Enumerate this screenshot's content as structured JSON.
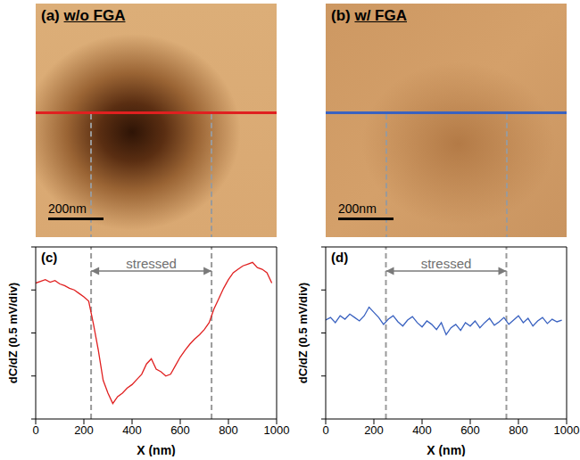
{
  "images": [
    {
      "label": "(a)",
      "title": "w/o FGA",
      "scale_bar": "200nm",
      "line_color": "#e02020"
    },
    {
      "label": "(b)",
      "title": "w/ FGA",
      "scale_bar": "200nm",
      "line_color": "#3a62c0"
    }
  ],
  "chart_data": [
    {
      "type": "line",
      "label": "(c)",
      "x_label": "X (nm)",
      "y_label": "dC/dZ (0.5 mV/div)",
      "annotation": "stressed",
      "stressed_range": [
        230,
        730
      ],
      "xlim": [
        0,
        1000
      ],
      "xticks": [
        0,
        200,
        400,
        600,
        800,
        1000
      ],
      "ylim": [
        0,
        2
      ],
      "yticks": [
        0,
        0.5,
        1,
        1.5,
        2
      ],
      "tick_labels": "x",
      "x": [
        0,
        20,
        40,
        60,
        80,
        100,
        120,
        140,
        160,
        180,
        200,
        220,
        240,
        260,
        280,
        300,
        320,
        340,
        360,
        380,
        400,
        420,
        440,
        460,
        480,
        500,
        520,
        540,
        560,
        580,
        600,
        620,
        640,
        660,
        680,
        700,
        720,
        740,
        760,
        780,
        800,
        820,
        840,
        860,
        880,
        900,
        920,
        940,
        960,
        980
      ],
      "series": [
        {
          "color": "#e02020",
          "values": [
            1.58,
            1.6,
            1.62,
            1.59,
            1.61,
            1.57,
            1.55,
            1.52,
            1.5,
            1.46,
            1.42,
            1.37,
            1.1,
            0.8,
            0.45,
            0.3,
            0.18,
            0.26,
            0.3,
            0.36,
            0.4,
            0.46,
            0.52,
            0.64,
            0.7,
            0.58,
            0.55,
            0.5,
            0.52,
            0.62,
            0.72,
            0.8,
            0.87,
            0.93,
            0.98,
            1.04,
            1.12,
            1.28,
            1.4,
            1.52,
            1.62,
            1.7,
            1.74,
            1.78,
            1.8,
            1.82,
            1.76,
            1.74,
            1.7,
            1.58
          ]
        }
      ]
    },
    {
      "type": "line",
      "label": "(d)",
      "x_label": "X (nm)",
      "y_label": "dC/dZ (0.5 mV/div)",
      "annotation": "stressed",
      "stressed_range": [
        250,
        750
      ],
      "xlim": [
        0,
        1000
      ],
      "xticks": [
        0,
        200,
        400,
        600,
        800,
        1000
      ],
      "ylim": [
        0,
        2
      ],
      "yticks": [
        0,
        0.5,
        1,
        1.5,
        2
      ],
      "tick_labels": "x",
      "x": [
        0,
        20,
        40,
        60,
        80,
        100,
        120,
        140,
        160,
        180,
        200,
        220,
        240,
        260,
        280,
        300,
        320,
        340,
        360,
        380,
        400,
        420,
        440,
        460,
        480,
        500,
        520,
        540,
        560,
        580,
        600,
        620,
        640,
        660,
        680,
        700,
        720,
        740,
        760,
        780,
        800,
        820,
        840,
        860,
        880,
        900,
        920,
        940,
        960,
        980
      ],
      "series": [
        {
          "color": "#3a62c0",
          "values": [
            1.15,
            1.18,
            1.12,
            1.2,
            1.16,
            1.22,
            1.18,
            1.14,
            1.2,
            1.3,
            1.24,
            1.18,
            1.1,
            1.16,
            1.2,
            1.13,
            1.08,
            1.15,
            1.19,
            1.12,
            1.07,
            1.14,
            1.1,
            1.04,
            1.12,
            0.98,
            1.06,
            1.1,
            1.03,
            1.12,
            1.08,
            1.14,
            1.06,
            1.12,
            1.17,
            1.09,
            1.13,
            1.18,
            1.1,
            1.15,
            1.2,
            1.12,
            1.17,
            1.08,
            1.14,
            1.18,
            1.11,
            1.16,
            1.13,
            1.15
          ]
        }
      ]
    }
  ]
}
